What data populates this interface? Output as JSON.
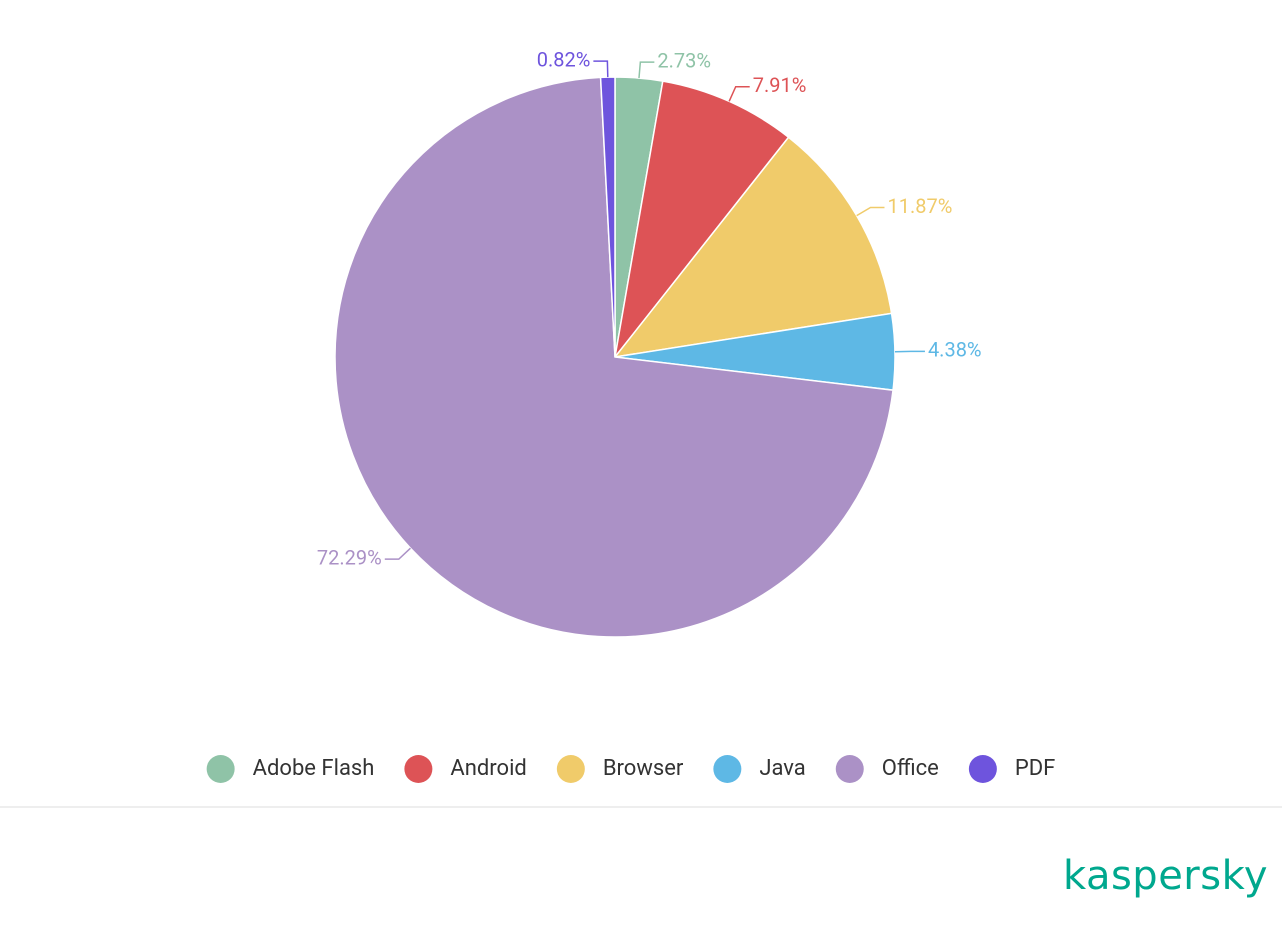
{
  "chart_data": {
    "type": "pie",
    "categories": [
      "Adobe Flash",
      "Android",
      "Browser",
      "Java",
      "Office",
      "PDF"
    ],
    "values": [
      2.73,
      7.91,
      11.87,
      4.38,
      72.29,
      0.82
    ],
    "value_labels": [
      "2.73%",
      "7.91%",
      "11.87%",
      "4.38%",
      "72.29%",
      "0.82%"
    ],
    "colors": [
      "#8fc3a7",
      "#dd5356",
      "#f0cb6a",
      "#5eb8e5",
      "#ab91c6",
      "#6e54dd"
    ],
    "legend": "bottom"
  },
  "brand": "kaspersky"
}
